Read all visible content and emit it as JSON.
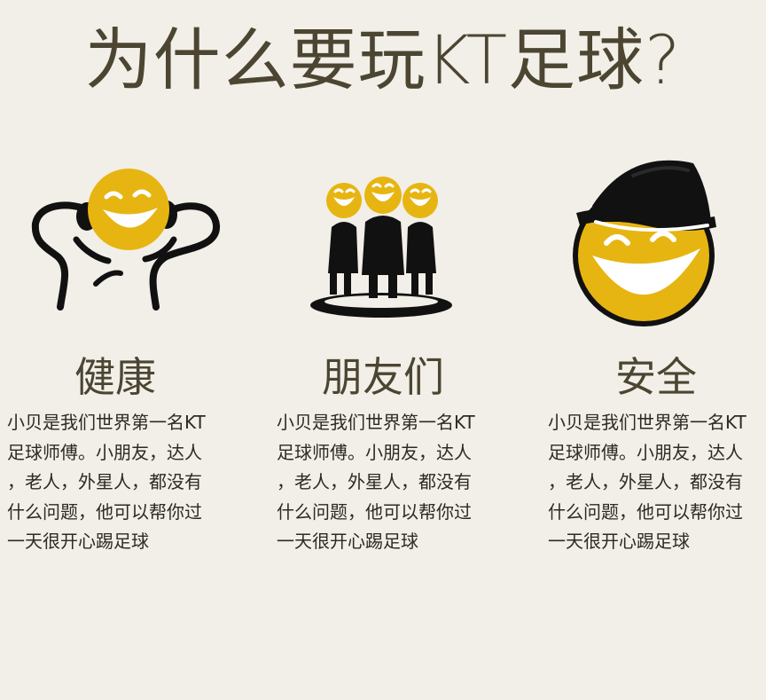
{
  "page": {
    "title": "为什么要玩KT足球?"
  },
  "features": [
    {
      "icon": "strong-smiley-icon",
      "heading": "健康",
      "text": "小贝是我们世界第一名KT\n足球师傅。小朋友，达人\n，老人，外星人，都没有\n什么问题，他可以帮你过\n一天很开心踢足球"
    },
    {
      "icon": "friends-group-icon",
      "heading": "朋友们",
      "text": "小贝是我们世界第一名KT\n足球师傅。小朋友，达人\n，老人，外星人，都没有\n什么问题，他可以帮你过\n一天很开心踢足球"
    },
    {
      "icon": "helmet-smiley-icon",
      "heading": "安全",
      "text": "小贝是我们世界第一名KT\n足球师傅。小朋友，达人\n，老人，外星人，都没有\n什么问题，他可以帮你过\n一天很开心踢足球"
    }
  ],
  "colors": {
    "background": "#f2efe8",
    "accent_yellow": "#e7b512",
    "icon_black": "#111111",
    "heading_text": "#4b4532",
    "body_text": "#2d2a22"
  }
}
